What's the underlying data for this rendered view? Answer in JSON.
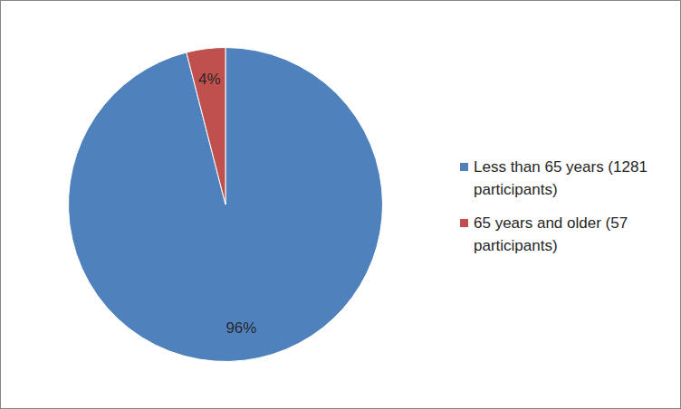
{
  "chart_data": {
    "type": "pie",
    "categories": [
      "Less than 65 years (1281 participants)",
      "65 years and older (57 participants)"
    ],
    "values": [
      96,
      4
    ],
    "value_labels": [
      "96%",
      "4%"
    ],
    "colors": [
      "#4f81bd",
      "#c0504d"
    ],
    "data_labels": true,
    "legend": "right"
  }
}
